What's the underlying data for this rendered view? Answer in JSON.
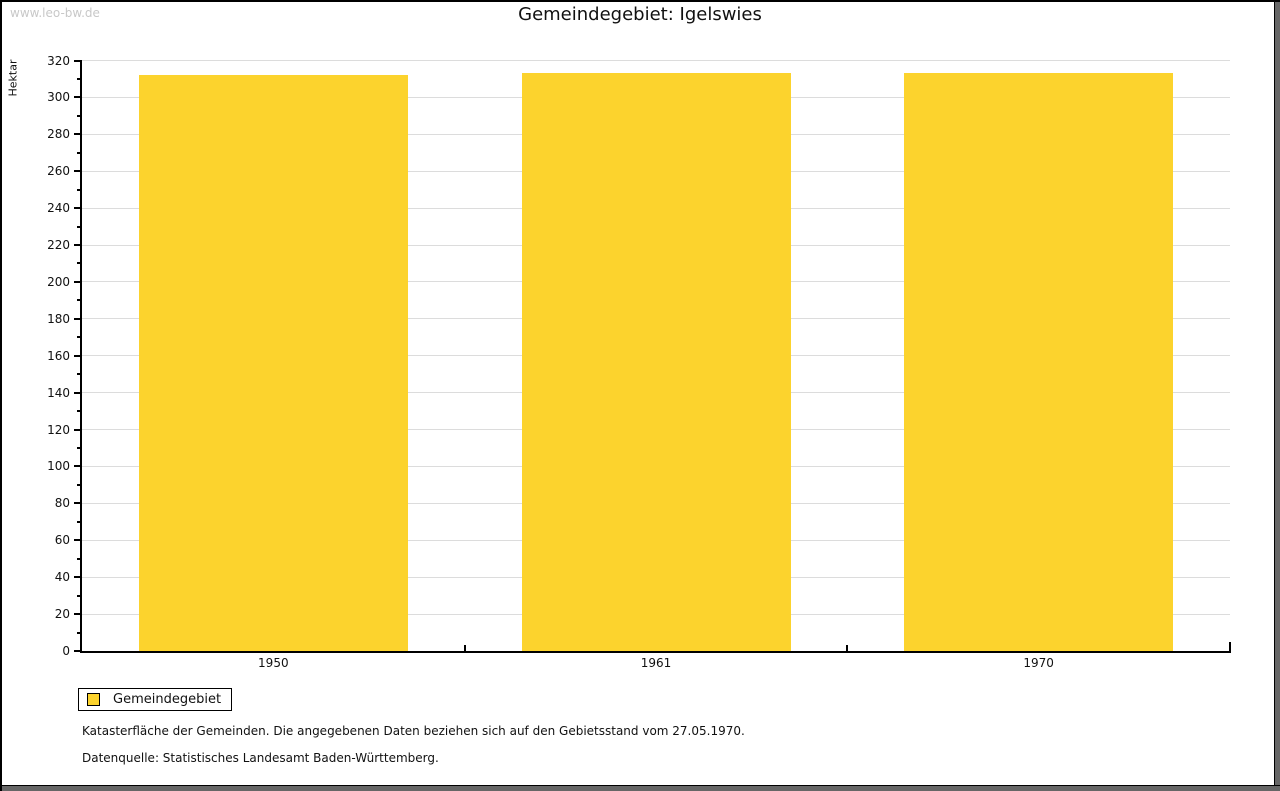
{
  "watermark": "www.leo-bw.de",
  "title": "Gemeindegebiet: Igelswies",
  "chart_data": {
    "type": "bar",
    "title": "Gemeindegebiet: Igelswies",
    "categories": [
      "1950",
      "1961",
      "1970"
    ],
    "series": [
      {
        "name": "Gemeindegebiet",
        "values": [
          312,
          313,
          313
        ]
      }
    ],
    "xlabel": "",
    "ylabel": "Hektar",
    "ylim": [
      0,
      320
    ],
    "ytick_step": 20,
    "yminor_step": 10,
    "grid": true,
    "legend_position": "bottom-left",
    "bar_color": "#fcd32d"
  },
  "legend": {
    "items": [
      {
        "label": "Gemeindegebiet",
        "color": "#fcd32d"
      }
    ]
  },
  "notes": [
    "Katasterfläche der Gemeinden. Die angegebenen Daten beziehen sich auf den Gebietsstand vom 27.05.1970.",
    "Datenquelle: Statistisches Landesamt Baden-Württemberg."
  ],
  "colors": {
    "bar": "#fcd32d",
    "grid": "#dcdcdc",
    "axis": "#000000",
    "watermark": "#c8c8c8",
    "frame_shadow": "#666666",
    "text": "#111111"
  }
}
